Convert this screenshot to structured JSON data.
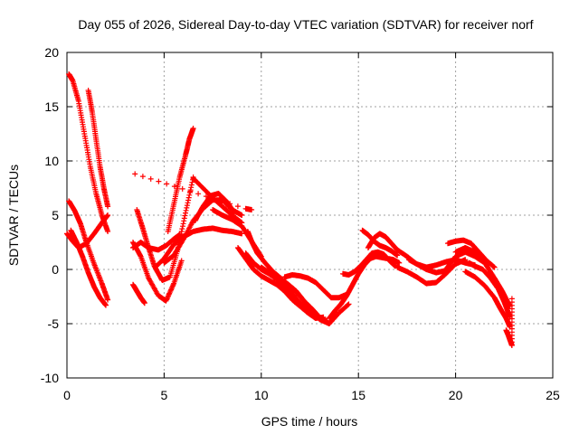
{
  "chart_data": {
    "type": "scatter",
    "title": "Day 055 of 2026, Sidereal Day-to-day VTEC variation (SDTVAR) for receiver norf",
    "xlabel": "GPS time / hours",
    "ylabel": "SDTVAR / TECUs",
    "xlim": [
      0,
      25
    ],
    "ylim": [
      -10,
      20
    ],
    "xticks": [
      0,
      5,
      10,
      15,
      20,
      25
    ],
    "yticks": [
      -10,
      -5,
      0,
      5,
      10,
      15,
      20
    ],
    "grid": true,
    "legend": "none",
    "marker": "+",
    "series": [
      {
        "name": "SDTVAR",
        "color": "#ff0000",
        "tracks": [
          {
            "x": [
              0.1,
              0.3,
              0.6,
              0.9,
              1.2,
              1.5,
              1.8,
              2.1
            ],
            "y": [
              18,
              17.4,
              15.5,
              12.5,
              9.5,
              7,
              5,
              3.5
            ]
          },
          {
            "x": [
              1.1,
              1.3,
              1.5,
              1.7,
              1.9,
              2.1
            ],
            "y": [
              16.5,
              14.5,
              12,
              9.5,
              7.5,
              5.8
            ]
          },
          {
            "x": [
              0.1,
              0.4,
              0.7,
              1.0,
              1.4,
              1.8,
              2.1
            ],
            "y": [
              6.3,
              5.4,
              4.2,
              2.5,
              0.5,
              -1.3,
              -2.8
            ]
          },
          {
            "x": [
              0.2,
              0.5,
              0.8,
              1.1,
              1.4,
              1.7,
              2.0
            ],
            "y": [
              3.6,
              2.5,
              1.2,
              -0.3,
              -1.6,
              -2.6,
              -3.3
            ]
          },
          {
            "x": [
              0.0,
              0.3,
              0.6,
              1.0,
              1.4,
              1.8,
              2.1
            ],
            "y": [
              3.3,
              2.6,
              2.0,
              2.4,
              3.3,
              4.3,
              5.0
            ]
          },
          {
            "x": [
              3.4,
              3.6,
              3.8,
              4.0
            ],
            "y": [
              -1.4,
              -2.0,
              -2.6,
              -3.1
            ]
          },
          {
            "x": [
              3.6,
              3.9,
              4.2,
              4.5,
              4.9,
              5.3,
              5.7,
              6.1,
              6.5
            ],
            "y": [
              5.5,
              3.8,
              2.0,
              0.3,
              -1.0,
              -0.7,
              1.8,
              5.2,
              8.5
            ]
          },
          {
            "x": [
              5.2,
              5.5,
              5.8,
              6.1,
              6.3,
              6.5
            ],
            "y": [
              3.5,
              6.0,
              8.5,
              10.5,
              12.0,
              13.0
            ]
          },
          {
            "x": [
              3.4,
              3.8,
              4.2,
              4.7,
              5.1,
              5.5,
              5.9
            ],
            "y": [
              2.5,
              1.2,
              -0.8,
              -2.4,
              -2.9,
              -1.3,
              0.8
            ]
          },
          {
            "x": [
              3.4,
              3.8,
              4.2,
              4.7,
              5.1,
              5.5,
              5.8
            ],
            "y": [
              2.0,
              2.5,
              2.0,
              1.8,
              2.2,
              2.8,
              3.2
            ]
          },
          {
            "x": [
              4.6,
              5.0,
              5.5,
              6.0,
              6.5,
              7.0,
              7.5,
              8.0,
              8.5,
              9.0
            ],
            "y": [
              0.3,
              1.0,
              2.3,
              3.0,
              3.5,
              3.7,
              3.8,
              3.6,
              3.5,
              3.3
            ]
          },
          {
            "x": [
              5.0,
              5.5,
              6.0,
              6.5,
              7.0,
              7.5,
              8.0,
              8.5,
              9.0
            ],
            "y": [
              0.6,
              1.3,
              2.8,
              4.5,
              5.6,
              6.4,
              6.4,
              5.5,
              5.0
            ]
          },
          {
            "x": [
              6.5,
              7.0,
              7.5,
              8.0,
              8.5,
              9.0
            ],
            "y": [
              8.4,
              7.5,
              6.6,
              5.8,
              5.0,
              4.3
            ]
          },
          {
            "x": [
              6.6,
              7.0,
              7.4,
              7.8,
              8.2,
              8.6
            ],
            "y": [
              4.5,
              5.8,
              6.8,
              7.0,
              6.3,
              5.3
            ]
          },
          {
            "x": [
              7.5,
              8.0,
              8.5,
              9.0,
              9.5,
              10.0
            ],
            "y": [
              5.5,
              5.0,
              4.6,
              4.0,
              2.6,
              1.2
            ]
          },
          {
            "x": [
              3.5,
              9.2,
              9.5
            ],
            "y": [
              8.8,
              5.6,
              5.5
            ]
          },
          {
            "x": [
              8.8,
              9.2,
              9.6,
              10.0,
              10.4,
              10.8,
              11.2,
              11.6,
              12.0,
              12.4,
              12.8,
              13.2
            ],
            "y": [
              2.0,
              1.0,
              0.0,
              -0.6,
              -1.0,
              -1.4,
              -2.0,
              -2.8,
              -3.4,
              -4.0,
              -4.5,
              -4.4
            ]
          },
          {
            "x": [
              9.2,
              9.6,
              10.0,
              10.4,
              10.8,
              11.2,
              11.6,
              12.0,
              12.4,
              12.8,
              13.2
            ],
            "y": [
              1.5,
              0.6,
              0.0,
              -0.4,
              -0.9,
              -1.5,
              -2.3,
              -3.1,
              -3.7,
              -4.3,
              -4.7
            ]
          },
          {
            "x": [
              9.3,
              9.5,
              9.8,
              10.2,
              10.6,
              11.0,
              11.4,
              11.8,
              12.2,
              12.6,
              13.0,
              13.4
            ],
            "y": [
              3.5,
              2.6,
              1.5,
              0.6,
              -0.2,
              -0.8,
              -1.4,
              -2.0,
              -2.9,
              -3.6,
              -4.4,
              -4.8
            ]
          },
          {
            "x": [
              10.0,
              10.5,
              11.0,
              11.5,
              12.0,
              12.5,
              13.0,
              13.5,
              14.0,
              14.5
            ],
            "y": [
              0.2,
              -0.4,
              -0.9,
              -1.6,
              -2.5,
              -3.5,
              -4.6,
              -5.0,
              -4.0,
              -3.2
            ]
          },
          {
            "x": [
              11.2,
              11.6,
              12.0,
              12.4,
              12.8,
              13.2,
              13.6,
              14.0,
              14.4
            ],
            "y": [
              -0.7,
              -0.5,
              -0.6,
              -0.8,
              -1.2,
              -1.9,
              -2.6,
              -2.6,
              -2.3
            ]
          },
          {
            "x": [
              13.5,
              13.8,
              14.1,
              14.4,
              14.7,
              15.0,
              15.3,
              15.6,
              15.9,
              16.2,
              16.5,
              16.8,
              17.1
            ],
            "y": [
              -4.5,
              -3.8,
              -3.2,
              -2.4,
              -1.4,
              -0.4,
              0.4,
              1.0,
              1.2,
              1.1,
              1.0,
              0.9,
              0.6
            ]
          },
          {
            "x": [
              14.2,
              14.5,
              14.8,
              15.1,
              15.4,
              15.7,
              16.0,
              16.3,
              16.6,
              16.9
            ],
            "y": [
              -0.4,
              -0.5,
              -0.2,
              0.3,
              0.9,
              1.5,
              1.6,
              1.4,
              0.8,
              0.3
            ]
          },
          {
            "x": [
              15.2,
              15.5,
              15.8,
              16.1,
              16.4,
              16.7,
              17.0
            ],
            "y": [
              3.6,
              3.2,
              2.6,
              2.2,
              2.0,
              1.7,
              1.3
            ]
          },
          {
            "x": [
              15.5,
              15.8,
              16.1,
              16.4,
              16.7,
              17.0
            ],
            "y": [
              2.0,
              2.9,
              3.3,
              3.0,
              2.4,
              1.8
            ]
          },
          {
            "x": [
              17.0,
              17.5,
              18.0,
              18.5,
              19.0,
              19.5,
              20.0,
              20.5,
              21.0
            ],
            "y": [
              1.8,
              1.2,
              0.5,
              0.2,
              0.4,
              0.7,
              0.9,
              0.6,
              0.4
            ]
          },
          {
            "x": [
              17.0,
              17.5,
              18.0,
              18.5,
              19.0,
              19.5,
              20.0,
              20.5
            ],
            "y": [
              0.2,
              -0.2,
              -0.7,
              -1.3,
              -1.2,
              -0.4,
              0.5,
              0.9
            ]
          },
          {
            "x": [
              17.6,
              18.0,
              18.5,
              19.0,
              19.5
            ],
            "y": [
              0.9,
              0.5,
              0.0,
              -0.3,
              -0.1
            ]
          },
          {
            "x": [
              19.6,
              20.0,
              20.4,
              20.8,
              21.2,
              21.6,
              22.0
            ],
            "y": [
              2.4,
              2.6,
              2.7,
              2.4,
              1.6,
              0.8,
              0.2
            ]
          },
          {
            "x": [
              19.5,
              20.0,
              20.5,
              21.0,
              21.5
            ],
            "y": [
              0.0,
              1.2,
              1.6,
              1.2,
              0.6
            ]
          },
          {
            "x": [
              20.0,
              20.5,
              21.0,
              21.5,
              22.0,
              22.4,
              22.8
            ],
            "y": [
              1.6,
              2.0,
              1.6,
              0.6,
              -0.8,
              -2.0,
              -3.4
            ]
          },
          {
            "x": [
              20.5,
              21.0,
              21.5,
              22.0,
              22.3,
              22.6,
              22.8
            ],
            "y": [
              -0.2,
              -0.7,
              -1.5,
              -2.6,
              -3.6,
              -4.5,
              -5.3
            ]
          },
          {
            "x": [
              20.7,
              21.0,
              21.4,
              21.8,
              22.2,
              22.5,
              22.8
            ],
            "y": [
              0.6,
              0.3,
              0.0,
              -0.8,
              -1.8,
              -3.0,
              -4.4
            ]
          },
          {
            "x": [
              22.6,
              22.7,
              22.8,
              22.9,
              22.9
            ],
            "y": [
              -5.6,
              -6.0,
              -6.5,
              -7.0,
              -2.7
            ]
          }
        ]
      }
    ]
  }
}
